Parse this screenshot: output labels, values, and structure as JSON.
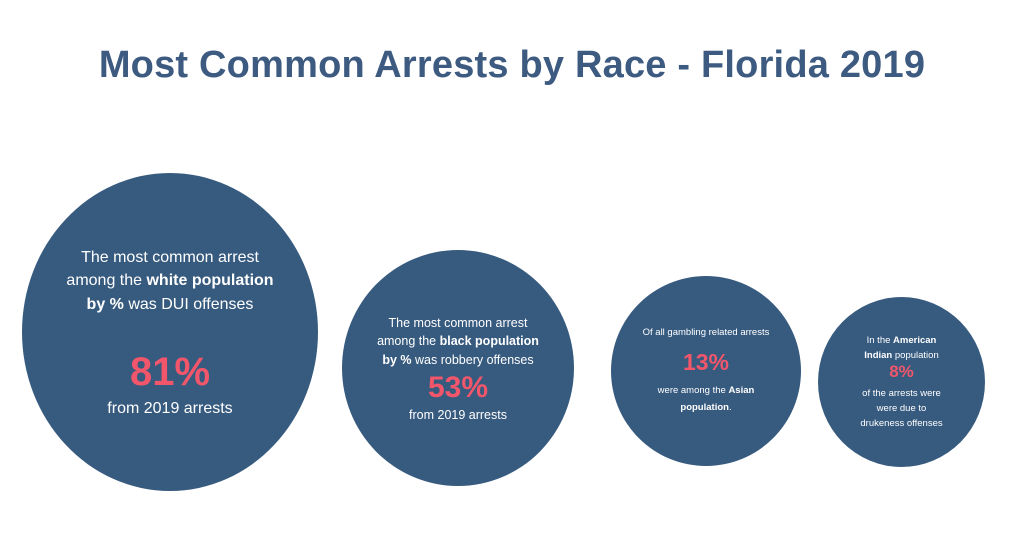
{
  "title": "Most Common Arrests by Race - Florida 2019",
  "colors": {
    "title": "#3d5a80",
    "circle": "#375a7f",
    "percent": "#f2566b",
    "text": "#ffffff"
  },
  "circles": {
    "white": {
      "line1": "The most common arrest",
      "line2_prefix": "among the ",
      "line2_bold": "white population",
      "line3_bold": "by %",
      "line3_rest": " was DUI offenses",
      "percent": "81%",
      "sub": "from 2019 arrests"
    },
    "black": {
      "line1": "The most common arrest",
      "line2_prefix": "among the ",
      "line2_bold": "black population",
      "line3_bold": "by %",
      "line3_rest": " was robbery offenses",
      "percent": "53%",
      "sub": "from 2019 arrests"
    },
    "asian": {
      "line1": "Of all gambling related arrests",
      "percent": "13%",
      "sub_prefix": "were among the ",
      "sub_bold1": "Asian",
      "sub_bold2": "population",
      "sub_suffix": "."
    },
    "american_indian": {
      "line1_prefix": "In the ",
      "line1_bold": "American",
      "line2_bold": "Indian",
      "line2_rest": " population",
      "percent": "8%",
      "sub1": "of the arrests were",
      "sub2": "were due to",
      "sub3": "drukeness offenses"
    }
  }
}
